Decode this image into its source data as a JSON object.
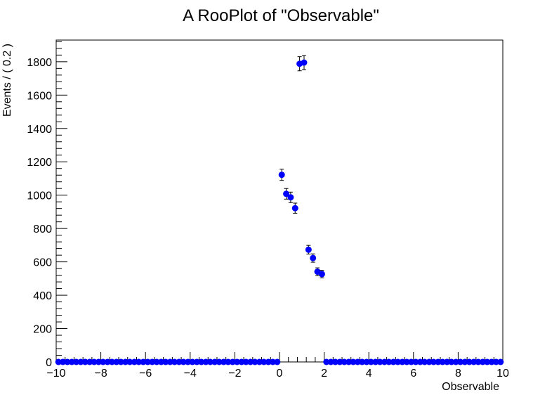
{
  "chart_data": {
    "type": "scatter",
    "title": "A RooPlot of \"Observable\"",
    "xlabel": "Observable",
    "ylabel": "Events / ( 0.2 )",
    "xlim": [
      -10,
      10
    ],
    "ylim": [
      0,
      1930
    ],
    "grid": false,
    "x_ticks": [
      -10,
      -8,
      -6,
      -4,
      -2,
      0,
      2,
      4,
      6,
      8,
      10
    ],
    "x_tick_labels": [
      "−10",
      "−8",
      "−6",
      "−4",
      "−2",
      "0",
      "2",
      "4",
      "6",
      "8",
      "10"
    ],
    "y_ticks": [
      0,
      200,
      400,
      600,
      800,
      1000,
      1200,
      1400,
      1600,
      1800
    ],
    "y_tick_labels": [
      "0",
      "200",
      "400",
      "600",
      "800",
      "1000",
      "1200",
      "1400",
      "1600",
      "1800"
    ],
    "marker_color": "#0000ff",
    "bin_width": 0.2,
    "nonzero_points": [
      {
        "x": 0.1,
        "y": 1122
      },
      {
        "x": 0.3,
        "y": 1008
      },
      {
        "x": 0.5,
        "y": 987
      },
      {
        "x": 0.7,
        "y": 922
      },
      {
        "x": 0.9,
        "y": 1788
      },
      {
        "x": 1.1,
        "y": 1795
      },
      {
        "x": 1.3,
        "y": 673
      },
      {
        "x": 1.5,
        "y": 623
      },
      {
        "x": 1.7,
        "y": 541
      },
      {
        "x": 1.9,
        "y": 527
      }
    ]
  }
}
